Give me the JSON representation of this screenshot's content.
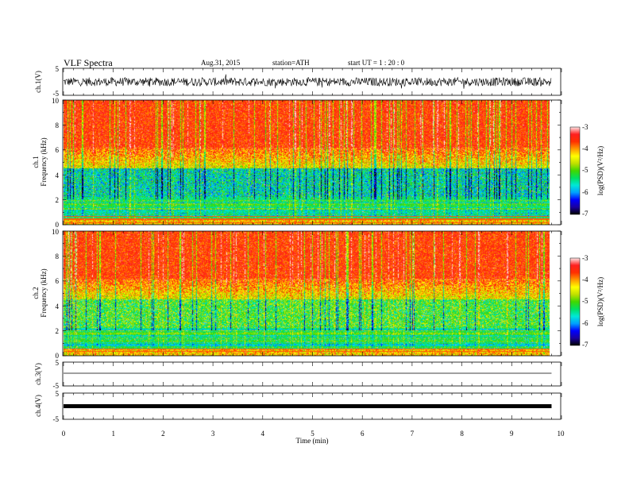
{
  "header": {
    "title": "VLF  Spectra",
    "date": "Aug.31, 2015",
    "station": "station=ATH",
    "start": "start  UT  =   1  : 20 : 0"
  },
  "chart_data": [
    {
      "type": "line",
      "ylabel": "ch.1(V)",
      "ylim": [
        -5,
        5
      ],
      "yticks": [
        "5",
        "-5"
      ],
      "trace": "broadband noise, approx. -2 to +2 V",
      "color": "#000000"
    },
    {
      "type": "heatmap",
      "ylabel": "ch.1\nFrequency  (kHz)",
      "ylim": [
        0,
        10
      ],
      "yticks": [
        "10",
        "8",
        "6",
        "4",
        "2",
        "0"
      ],
      "colorbar": {
        "label": "log(PSD)(V²/Hz)",
        "range": [
          -7,
          -3
        ],
        "ticks": [
          "-3",
          "-4",
          "-5",
          "-6",
          "-7"
        ],
        "colors": [
          "#000000",
          "#1a00a0",
          "#0000ff",
          "#00a0ff",
          "#00e8d8",
          "#00e060",
          "#40d800",
          "#c0e000",
          "#ffff00",
          "#ff9a00",
          "#ff3000",
          "#ff2020",
          "#ffe6e6"
        ]
      }
    },
    {
      "type": "heatmap",
      "ylabel": "ch.2\nFrequency  (kHz)",
      "ylim": [
        0,
        10
      ],
      "yticks": [
        "10",
        "8",
        "6",
        "4",
        "2",
        "0"
      ],
      "colorbar": {
        "label": "log(PSD)(V²/Hz)",
        "range": [
          -7,
          -3
        ],
        "ticks": [
          "-3",
          "-4",
          "-5",
          "-6",
          "-7"
        ]
      }
    },
    {
      "type": "line",
      "ylabel": "ch.3(V)",
      "ylim": [
        -5,
        5
      ],
      "yticks": [
        "5",
        "-5"
      ],
      "trace": "flat near 0 V",
      "color": "#000000"
    },
    {
      "type": "line",
      "ylabel": "ch.4(V)",
      "ylim": [
        -5,
        5
      ],
      "yticks": [
        "5",
        "-5"
      ],
      "trace": "flat thick band near 0 V",
      "color": "#000000"
    }
  ],
  "xaxis": {
    "label": "Time  (min)",
    "range": [
      0,
      10
    ],
    "ticks": [
      "0",
      "1",
      "2",
      "3",
      "4",
      "5",
      "6",
      "7",
      "8",
      "9",
      "10"
    ],
    "data_end": 9.8
  }
}
